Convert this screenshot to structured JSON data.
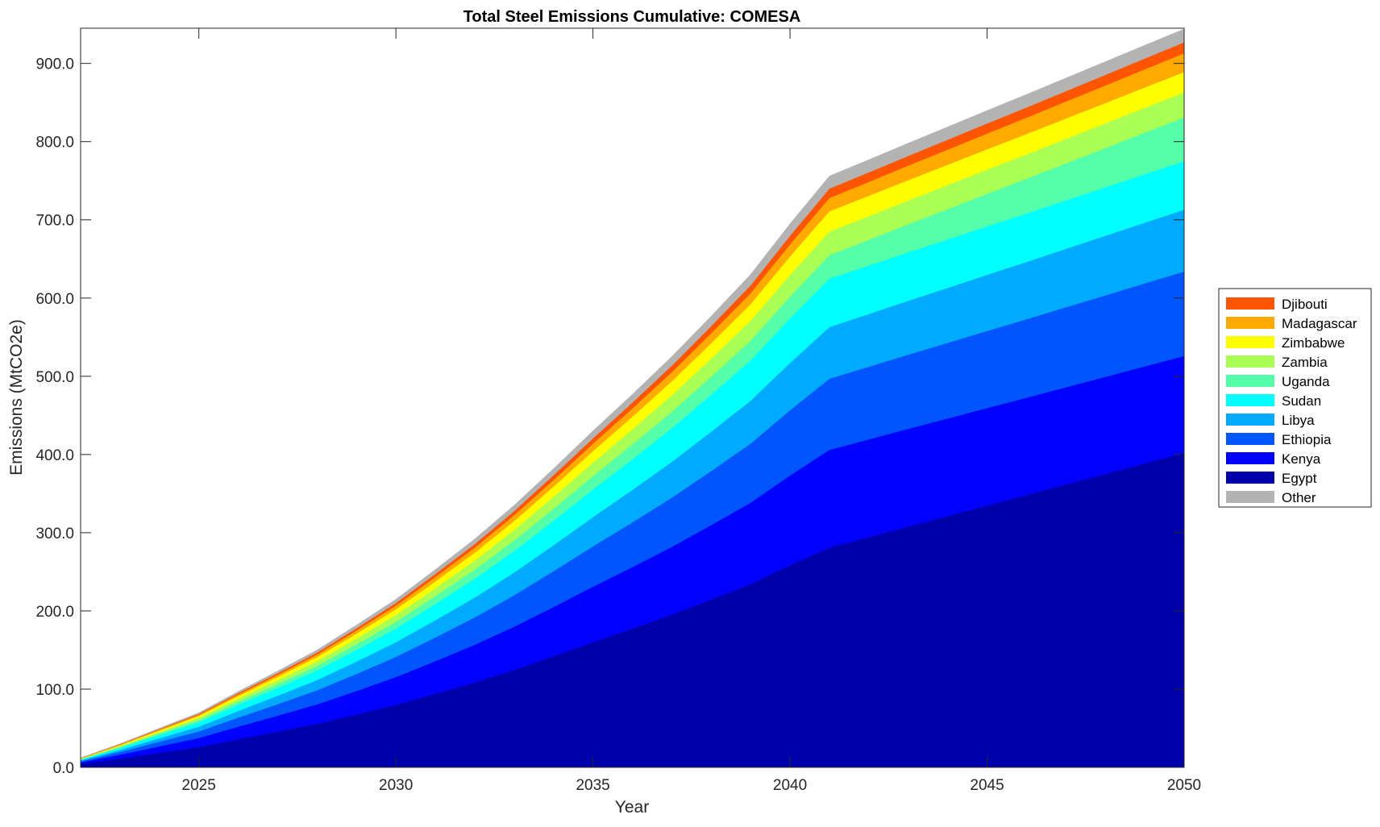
{
  "chart_data": {
    "type": "area",
    "stacked": true,
    "title": "Total Steel Emissions Cumulative: COMESA",
    "xlabel": "Year",
    "ylabel": "Emissions (MtCO2e)",
    "xlim": [
      2022,
      2050
    ],
    "ylim": [
      0,
      945
    ],
    "xticks": [
      2025,
      2030,
      2035,
      2040,
      2045,
      2050
    ],
    "yticks": [
      0,
      100,
      200,
      300,
      400,
      500,
      600,
      700,
      800,
      900
    ],
    "ytick_format": 1,
    "legend_position": "right",
    "legend_order": [
      "Djibouti",
      "Madagascar",
      "Zimbabwe",
      "Zambia",
      "Uganda",
      "Sudan",
      "Libya",
      "Ethiopia",
      "Kenya",
      "Egypt",
      "Other"
    ],
    "x": [
      2022,
      2023,
      2024,
      2025,
      2026,
      2027,
      2028,
      2029,
      2030,
      2031,
      2032,
      2033,
      2034,
      2035,
      2036,
      2037,
      2038,
      2039,
      2040,
      2041,
      2042,
      2043,
      2044,
      2045,
      2046,
      2047,
      2048,
      2049,
      2050
    ],
    "series": [
      {
        "name": "Egypt",
        "color": "#0000aa",
        "values": [
          4.5,
          11.2,
          18.6,
          26.0,
          36.1,
          45.8,
          55.8,
          67.7,
          80.0,
          94.1,
          108.6,
          124.6,
          142.1,
          160.0,
          177.4,
          195.3,
          214.6,
          234.4,
          258.5,
          281,
          294.4,
          307.9,
          321.3,
          334.8,
          348.2,
          361.7,
          375.1,
          388.6,
          402
        ]
      },
      {
        "name": "Kenya",
        "color": "#0000ff",
        "values": [
          2.0,
          5.0,
          8.3,
          11.6,
          16.0,
          20.3,
          24.8,
          30.0,
          35.5,
          41.7,
          48.2,
          55.3,
          63.0,
          71.0,
          78.7,
          86.6,
          95.2,
          104.0,
          114.7,
          125,
          125,
          125,
          124.8,
          124.6,
          124.4,
          124.3,
          124.2,
          124.1,
          124
        ]
      },
      {
        "name": "Ethiopia",
        "color": "#0055ff",
        "values": [
          1.4,
          3.6,
          6.0,
          8.4,
          11.6,
          14.8,
          18.0,
          21.8,
          25.8,
          30.4,
          35.0,
          40.2,
          45.8,
          51.6,
          57.2,
          63.0,
          69.2,
          75.6,
          83.4,
          91,
          92.9,
          94.8,
          96.7,
          98.6,
          100.4,
          102.3,
          104.2,
          106.1,
          108
        ]
      },
      {
        "name": "Libya",
        "color": "#00aaff",
        "values": [
          1.0,
          2.6,
          4.4,
          6.1,
          8.4,
          10.7,
          13.1,
          15.8,
          18.7,
          22.0,
          25.4,
          29.1,
          33.2,
          37.4,
          41.5,
          45.7,
          50.2,
          54.8,
          60.5,
          66,
          67.4,
          68.9,
          70.3,
          71.8,
          73.2,
          74.7,
          76.1,
          77.6,
          79
        ]
      },
      {
        "name": "Sudan",
        "color": "#00ffff",
        "values": [
          1.0,
          2.5,
          4.1,
          5.7,
          8.0,
          10.1,
          12.3,
          14.9,
          17.6,
          20.7,
          23.9,
          27.5,
          31.3,
          35.3,
          39.1,
          43.1,
          47.3,
          51.7,
          57.0,
          62,
          62,
          62,
          62,
          62,
          62,
          62,
          62,
          62,
          62
        ]
      },
      {
        "name": "Uganda",
        "color": "#55ffaa",
        "values": [
          0.5,
          1.2,
          2.0,
          2.8,
          3.9,
          4.9,
          6.0,
          7.3,
          8.6,
          10.1,
          11.7,
          13.4,
          15.3,
          17.2,
          19.1,
          21.0,
          23.1,
          25.2,
          27.8,
          30,
          32.9,
          35.8,
          38.7,
          41.6,
          44.4,
          47.3,
          50.2,
          53.1,
          56
        ]
      },
      {
        "name": "Zambia",
        "color": "#aaff55",
        "values": [
          0.5,
          1.2,
          2.0,
          2.8,
          3.9,
          4.9,
          6.0,
          7.3,
          8.6,
          10.1,
          11.7,
          13.4,
          15.3,
          17.2,
          19.1,
          21.0,
          23.1,
          25.2,
          27.8,
          30,
          30.2,
          30.4,
          30.7,
          30.9,
          31.1,
          31.3,
          31.6,
          31.8,
          32
        ]
      },
      {
        "name": "Zimbabwe",
        "color": "#ffff00",
        "values": [
          0.4,
          1.0,
          1.7,
          2.4,
          3.3,
          4.2,
          5.1,
          6.2,
          7.3,
          8.6,
          9.9,
          11.4,
          13.0,
          14.6,
          16.2,
          17.9,
          19.6,
          21.4,
          23.6,
          26,
          26,
          26,
          26,
          26,
          26,
          26,
          26,
          26,
          26
        ]
      },
      {
        "name": "Madagascar",
        "color": "#ffaa00",
        "values": [
          0.3,
          0.7,
          1.1,
          1.5,
          2.1,
          2.7,
          3.3,
          4.0,
          4.7,
          5.6,
          6.4,
          7.4,
          8.4,
          9.5,
          10.5,
          11.6,
          12.7,
          13.9,
          15.3,
          17,
          17.8,
          18.6,
          19.3,
          20.1,
          20.9,
          21.7,
          22.4,
          23.2,
          24
        ]
      },
      {
        "name": "Djibouti",
        "color": "#ff5500",
        "values": [
          0.2,
          0.5,
          0.8,
          1.1,
          1.6,
          2.0,
          2.4,
          2.9,
          3.4,
          4.0,
          4.7,
          5.4,
          6.1,
          6.9,
          7.6,
          8.4,
          9.2,
          10.1,
          11.1,
          12,
          12.2,
          12.4,
          12.7,
          12.9,
          13.1,
          13.3,
          13.6,
          13.8,
          14
        ]
      },
      {
        "name": "Other",
        "color": "#b3b3b3",
        "values": [
          0.3,
          0.7,
          1.1,
          1.5,
          2.1,
          2.7,
          3.3,
          4.0,
          4.7,
          5.6,
          6.4,
          7.4,
          8.4,
          9.5,
          10.5,
          11.6,
          12.7,
          13.9,
          15.3,
          16,
          16.1,
          16.2,
          16.3,
          16.4,
          16.6,
          16.7,
          16.8,
          16.9,
          17
        ]
      }
    ]
  }
}
